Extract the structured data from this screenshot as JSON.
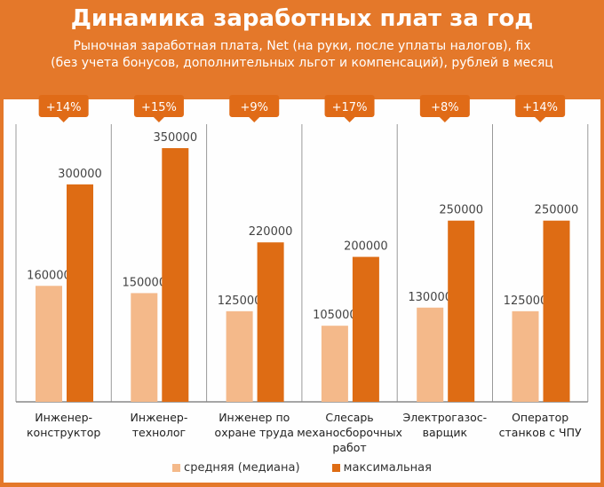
{
  "title": "Динамика заработных плат за год",
  "subtitle_lines": [
    "Рыночная заработная плата, Net (на руки, после уплаты налогов), fix",
    "(без учета бонусов, дополнительных льгот и компенсаций), рублей в месяц"
  ],
  "colors": {
    "header": "#e4782a",
    "median": "#f4b98a",
    "max": "#de6c14",
    "badge": "#e06b17"
  },
  "chart_data": {
    "type": "bar",
    "title": "Динамика заработных плат за год",
    "categories": [
      [
        "Инженер-",
        "конструктор"
      ],
      [
        "Инженер-",
        "технолог"
      ],
      [
        "Инженер по",
        "охране труда"
      ],
      [
        "Слесарь",
        "механосборочных",
        "работ"
      ],
      [
        "Электрогазос-",
        "варщик"
      ],
      [
        "Оператор",
        "станков с ЧПУ"
      ]
    ],
    "series": [
      {
        "name": "средняя (медиана)",
        "values": [
          160000,
          150000,
          125000,
          105000,
          130000,
          125000
        ]
      },
      {
        "name": "максимальная",
        "values": [
          300000,
          350000,
          220000,
          200000,
          250000,
          250000
        ]
      }
    ],
    "badges": [
      "+14%",
      "+15%",
      "+9%",
      "+17%",
      "+8%",
      "+14%"
    ],
    "ylim": [
      0,
      350000
    ],
    "grid": false,
    "legend_position": "bottom"
  }
}
